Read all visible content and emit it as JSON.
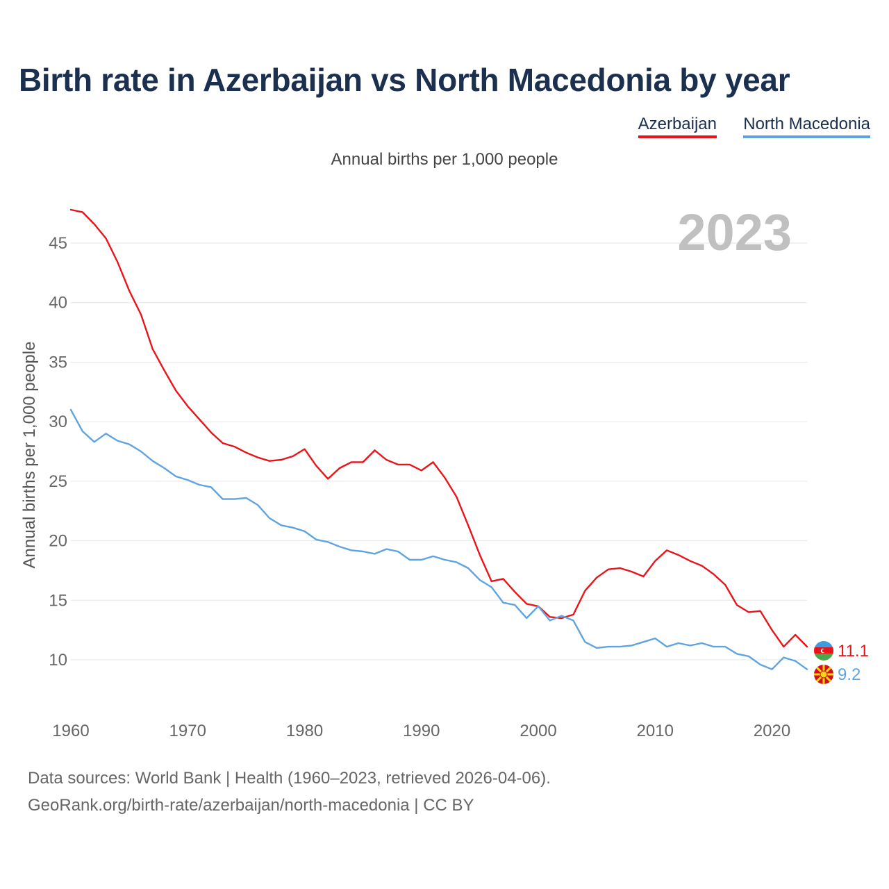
{
  "title": "Birth rate in Azerbaijan vs North Macedonia by year",
  "subtitle": "Annual births per 1,000 people",
  "legend": {
    "azerbaijan": "Azerbaijan",
    "north_macedonia": "North Macedonia"
  },
  "year_watermark": "2023",
  "footer": {
    "line1": "Data sources: World Bank | Health (1960–2023, retrieved 2026-04-06).",
    "line2": "GeoRank.org/birth-rate/azerbaijan/north-macedonia | CC BY"
  },
  "colors": {
    "azerbaijan": "#e8141a",
    "north_macedonia": "#5fa4e0",
    "title": "#1b2f4e",
    "grid": "#e6e6e6",
    "axis_text": "#666666",
    "watermark": "#c0c0c0"
  },
  "chart_data": {
    "type": "line",
    "title": "Birth rate in Azerbaijan vs North Macedonia by year",
    "ylabel": "Annual births per 1,000 people",
    "xlabel": "",
    "xlim": [
      1960,
      2023
    ],
    "ylim": [
      6.5,
      48.5
    ],
    "x_ticks": [
      1960,
      1970,
      1980,
      1990,
      2000,
      2010,
      2020
    ],
    "y_ticks": [
      10,
      15,
      20,
      25,
      30,
      35,
      40,
      45
    ],
    "grid": true,
    "legend_position": "top-right",
    "x": [
      1960,
      1961,
      1962,
      1963,
      1964,
      1965,
      1966,
      1967,
      1968,
      1969,
      1970,
      1971,
      1972,
      1973,
      1974,
      1975,
      1976,
      1977,
      1978,
      1979,
      1980,
      1981,
      1982,
      1983,
      1984,
      1985,
      1986,
      1987,
      1988,
      1989,
      1990,
      1991,
      1992,
      1993,
      1994,
      1995,
      1996,
      1997,
      1998,
      1999,
      2000,
      2001,
      2002,
      2003,
      2004,
      2005,
      2006,
      2007,
      2008,
      2009,
      2010,
      2011,
      2012,
      2013,
      2014,
      2015,
      2016,
      2017,
      2018,
      2019,
      2020,
      2021,
      2022,
      2023
    ],
    "series": [
      {
        "name": "Azerbaijan",
        "end_label": "11.1",
        "values": [
          47.8,
          47.6,
          46.6,
          45.4,
          43.4,
          41.0,
          39.0,
          36.1,
          34.3,
          32.6,
          31.3,
          30.2,
          29.1,
          28.2,
          27.9,
          27.4,
          27.0,
          26.7,
          26.8,
          27.1,
          27.7,
          26.3,
          25.2,
          26.1,
          26.6,
          26.6,
          27.6,
          26.8,
          26.4,
          26.4,
          25.9,
          26.6,
          25.3,
          23.7,
          21.3,
          18.8,
          16.6,
          16.8,
          15.7,
          14.7,
          14.5,
          13.6,
          13.5,
          13.8,
          15.8,
          16.9,
          17.6,
          17.7,
          17.4,
          17.0,
          18.3,
          19.2,
          18.8,
          18.3,
          17.9,
          17.2,
          16.3,
          14.6,
          14.0,
          14.1,
          12.5,
          11.1,
          12.1,
          11.1
        ]
      },
      {
        "name": "North Macedonia",
        "end_label": "9.2",
        "values": [
          31.0,
          29.2,
          28.3,
          29.0,
          28.4,
          28.1,
          27.5,
          26.7,
          26.1,
          25.4,
          25.1,
          24.7,
          24.5,
          23.5,
          23.5,
          23.6,
          23.0,
          21.9,
          21.3,
          21.1,
          20.8,
          20.1,
          19.9,
          19.5,
          19.2,
          19.1,
          18.9,
          19.3,
          19.1,
          18.4,
          18.4,
          18.7,
          18.4,
          18.2,
          17.7,
          16.7,
          16.1,
          14.8,
          14.6,
          13.5,
          14.5,
          13.3,
          13.7,
          13.3,
          11.5,
          11.0,
          11.1,
          11.1,
          11.2,
          11.5,
          11.8,
          11.1,
          11.4,
          11.2,
          11.4,
          11.1,
          11.1,
          10.5,
          10.3,
          9.6,
          9.2,
          10.2,
          9.9,
          9.2
        ]
      }
    ]
  }
}
